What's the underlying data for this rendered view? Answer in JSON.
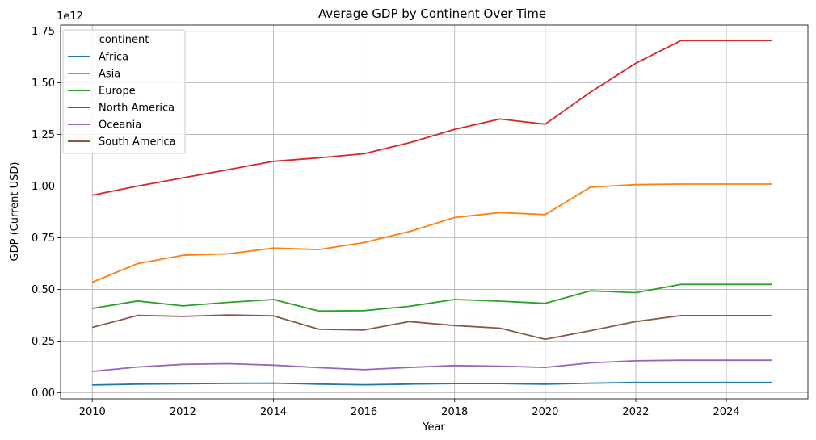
{
  "chart_data": {
    "type": "line",
    "title": "Average GDP by Continent Over Time",
    "xlabel": "Year",
    "ylabel": "GDP (Current USD)",
    "offset_label": "1e12",
    "xlim": [
      2009.3,
      2025.8
    ],
    "ylim": [
      -0.03,
      1.78
    ],
    "y_scale_factor": 1000000000000,
    "x_ticks": [
      2010,
      2012,
      2014,
      2016,
      2018,
      2020,
      2022,
      2024
    ],
    "y_ticks": [
      0.0,
      0.25,
      0.5,
      0.75,
      1.0,
      1.25,
      1.5,
      1.75
    ],
    "y_tick_labels": [
      "0.00",
      "0.25",
      "0.50",
      "0.75",
      "1.00",
      "1.25",
      "1.50",
      "1.75"
    ],
    "grid": true,
    "legend_title": "continent",
    "legend_position": "top-left",
    "x": [
      2010,
      2011,
      2012,
      2013,
      2014,
      2015,
      2016,
      2017,
      2018,
      2019,
      2020,
      2021,
      2022,
      2023,
      2024,
      2025
    ],
    "series": [
      {
        "name": "Africa",
        "color": "#1f77b4",
        "values": [
          0.037,
          0.041,
          0.043,
          0.045,
          0.046,
          0.041,
          0.038,
          0.041,
          0.044,
          0.044,
          0.041,
          0.046,
          0.049,
          0.049,
          0.049,
          0.049
        ]
      },
      {
        "name": "Asia",
        "color": "#ff7f0e",
        "values": [
          0.535,
          0.625,
          0.665,
          0.672,
          0.7,
          0.693,
          0.727,
          0.78,
          0.848,
          0.872,
          0.862,
          0.995,
          1.007,
          1.01,
          1.01,
          1.01
        ]
      },
      {
        "name": "Europe",
        "color": "#2ca02c",
        "values": [
          0.408,
          0.444,
          0.42,
          0.437,
          0.451,
          0.395,
          0.397,
          0.418,
          0.451,
          0.443,
          0.432,
          0.493,
          0.484,
          0.524,
          0.524,
          0.524
        ]
      },
      {
        "name": "North America",
        "color": "#d62728",
        "values": [
          0.956,
          1.0,
          1.04,
          1.08,
          1.12,
          1.137,
          1.157,
          1.21,
          1.275,
          1.325,
          1.3,
          1.455,
          1.595,
          1.705,
          1.705,
          1.705
        ]
      },
      {
        "name": "Oceania",
        "color": "#9467bd",
        "values": [
          0.103,
          0.124,
          0.137,
          0.14,
          0.133,
          0.121,
          0.111,
          0.122,
          0.131,
          0.128,
          0.122,
          0.144,
          0.154,
          0.157,
          0.157,
          0.157
        ]
      },
      {
        "name": "South America",
        "color": "#8c564b",
        "values": [
          0.316,
          0.374,
          0.369,
          0.376,
          0.372,
          0.307,
          0.303,
          0.344,
          0.325,
          0.312,
          0.258,
          0.3,
          0.344,
          0.373,
          0.373,
          0.373
        ]
      }
    ]
  }
}
